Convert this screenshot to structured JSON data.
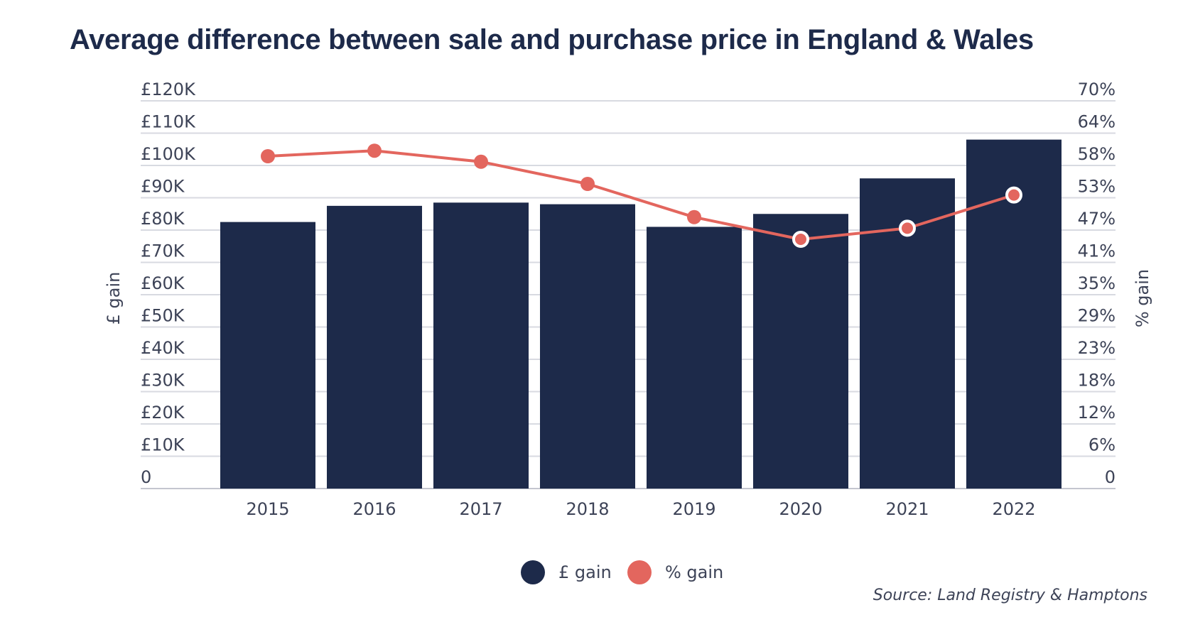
{
  "chart_data": {
    "type": "bar",
    "title": "Average difference between sale and purchase price in England & Wales",
    "categories": [
      "2015",
      "2016",
      "2017",
      "2018",
      "2019",
      "2020",
      "2021",
      "2022"
    ],
    "series": [
      {
        "name": "£ gain",
        "type": "bar",
        "axis": "left",
        "color": "#1d2a4a",
        "values": [
          82500,
          87500,
          88500,
          88000,
          81000,
          85000,
          96000,
          108000
        ]
      },
      {
        "name": "% gain",
        "type": "line",
        "axis": "right",
        "color": "#e3665e",
        "values": [
          60,
          61,
          59,
          55,
          49,
          45,
          47,
          53
        ]
      }
    ],
    "ylabel": "£ gain",
    "y2label": "% gain",
    "ylim": [
      0,
      120000
    ],
    "y2lim": [
      0,
      70
    ],
    "yticks": [
      0,
      10000,
      20000,
      30000,
      40000,
      50000,
      60000,
      70000,
      80000,
      90000,
      100000,
      110000,
      120000
    ],
    "yticklabels": [
      "0",
      "£10K",
      "£20K",
      "£30K",
      "£40K",
      "£50K",
      "£60K",
      "£70K",
      "£80K",
      "£90K",
      "£100K",
      "£110K",
      "£120K"
    ],
    "y2ticklabels": [
      "0",
      "6%",
      "12%",
      "18%",
      "23%",
      "29%",
      "35%",
      "41%",
      "47%",
      "53%",
      "58%",
      "64%",
      "70%"
    ],
    "grid": true,
    "legend": "bottom-center",
    "source": "Source: Land Registry & Hamptons"
  }
}
